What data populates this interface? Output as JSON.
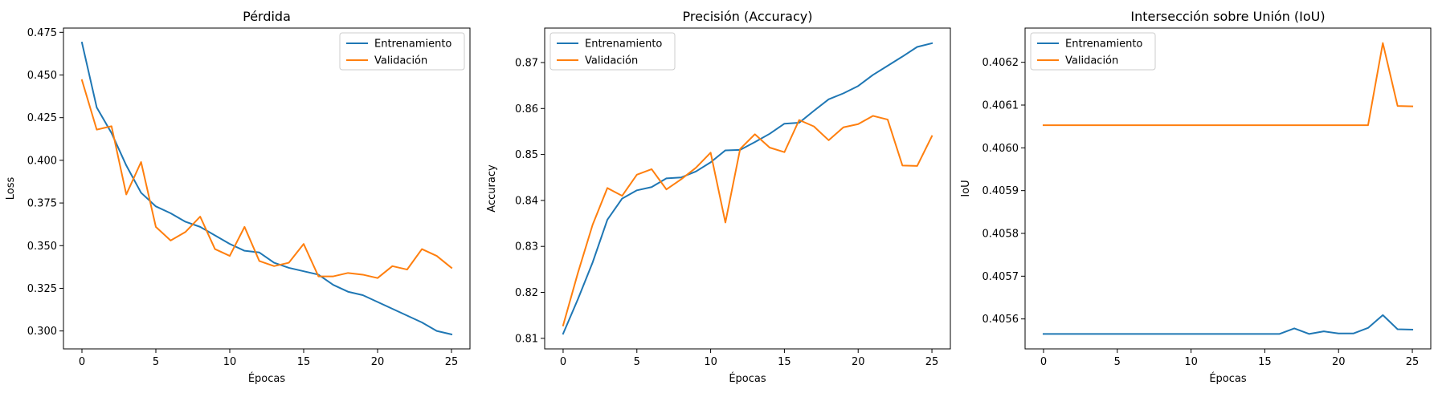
{
  "colors": {
    "train": "#1f77b4",
    "validation": "#ff7f0e"
  },
  "chart_data": [
    {
      "type": "line",
      "title": "Pérdida",
      "xlabel": "Épocas",
      "ylabel": "Loss",
      "xlim": [
        -1.25,
        26.25
      ],
      "ylim": [
        0.2895,
        0.4775
      ],
      "xticks": [
        0,
        5,
        10,
        15,
        20,
        25
      ],
      "xtick_labels": [
        "0",
        "5",
        "10",
        "15",
        "20",
        "25"
      ],
      "yticks": [
        0.3,
        0.325,
        0.35,
        0.375,
        0.4,
        0.425,
        0.45,
        0.475
      ],
      "ytick_labels": [
        "0.300",
        "0.325",
        "0.350",
        "0.375",
        "0.400",
        "0.425",
        "0.450",
        "0.475"
      ],
      "legend": "top-right",
      "grid": false,
      "x": [
        0,
        1,
        2,
        3,
        4,
        5,
        6,
        7,
        8,
        9,
        10,
        11,
        12,
        13,
        14,
        15,
        16,
        17,
        18,
        19,
        20,
        21,
        22,
        23,
        24,
        25
      ],
      "series": [
        {
          "name": "Entrenamiento",
          "color": "#1f77b4",
          "values": [
            0.469,
            0.431,
            0.416,
            0.397,
            0.381,
            0.373,
            0.369,
            0.364,
            0.361,
            0.356,
            0.351,
            0.347,
            0.346,
            0.34,
            0.337,
            0.335,
            0.333,
            0.327,
            0.323,
            0.321,
            0.317,
            0.313,
            0.309,
            0.305,
            0.3,
            0.298
          ]
        },
        {
          "name": "Validación",
          "color": "#ff7f0e",
          "values": [
            0.447,
            0.418,
            0.42,
            0.38,
            0.399,
            0.361,
            0.353,
            0.358,
            0.367,
            0.348,
            0.344,
            0.361,
            0.341,
            0.338,
            0.34,
            0.351,
            0.332,
            0.332,
            0.334,
            0.333,
            0.331,
            0.338,
            0.336,
            0.348,
            0.344,
            0.337
          ]
        }
      ]
    },
    {
      "type": "line",
      "title": "Precisión (Accuracy)",
      "xlabel": "Épocas",
      "ylabel": "Accuracy",
      "xlim": [
        -1.25,
        26.25
      ],
      "ylim": [
        0.8077,
        0.8775
      ],
      "xticks": [
        0,
        5,
        10,
        15,
        20,
        25
      ],
      "xtick_labels": [
        "0",
        "5",
        "10",
        "15",
        "20",
        "25"
      ],
      "yticks": [
        0.81,
        0.82,
        0.83,
        0.84,
        0.85,
        0.86,
        0.87
      ],
      "ytick_labels": [
        "0.81",
        "0.82",
        "0.83",
        "0.84",
        "0.85",
        "0.86",
        "0.87"
      ],
      "legend": "top-left",
      "grid": false,
      "x": [
        0,
        1,
        2,
        3,
        4,
        5,
        6,
        7,
        8,
        9,
        10,
        11,
        12,
        13,
        14,
        15,
        16,
        17,
        18,
        19,
        20,
        21,
        22,
        23,
        24,
        25
      ],
      "series": [
        {
          "name": "Entrenamiento",
          "color": "#1f77b4",
          "values": [
            0.811,
            0.8185,
            0.8265,
            0.8358,
            0.8404,
            0.8422,
            0.8429,
            0.8448,
            0.845,
            0.8463,
            0.8483,
            0.8509,
            0.851,
            0.8527,
            0.8545,
            0.8567,
            0.8569,
            0.8595,
            0.862,
            0.8633,
            0.8649,
            0.8673,
            0.8693,
            0.8713,
            0.8734,
            0.8742
          ]
        },
        {
          "name": "Validación",
          "color": "#ff7f0e",
          "values": [
            0.8128,
            0.8242,
            0.8347,
            0.8427,
            0.841,
            0.8456,
            0.8468,
            0.8424,
            0.8446,
            0.8471,
            0.8504,
            0.8352,
            0.8512,
            0.8544,
            0.8515,
            0.8505,
            0.8575,
            0.8561,
            0.8531,
            0.8559,
            0.8566,
            0.8584,
            0.8576,
            0.8476,
            0.8475,
            0.854
          ]
        }
      ]
    },
    {
      "type": "line",
      "title": "Intersección sobre Unión (IoU)",
      "xlabel": "Épocas",
      "ylabel": "IoU",
      "xlim": [
        -1.25,
        26.25
      ],
      "ylim": [
        0.40553,
        0.40628
      ],
      "xticks": [
        0,
        5,
        10,
        15,
        20,
        25
      ],
      "xtick_labels": [
        "0",
        "5",
        "10",
        "15",
        "20",
        "25"
      ],
      "yticks": [
        0.4056,
        0.4057,
        0.4058,
        0.4059,
        0.406,
        0.4061,
        0.4062
      ],
      "ytick_labels": [
        "0.4056",
        "0.4057",
        "0.4058",
        "0.4059",
        "0.4060",
        "0.4061",
        "0.4062"
      ],
      "legend": "top-left",
      "grid": false,
      "x": [
        0,
        1,
        2,
        3,
        4,
        5,
        6,
        7,
        8,
        9,
        10,
        11,
        12,
        13,
        14,
        15,
        16,
        17,
        18,
        19,
        20,
        21,
        22,
        23,
        24,
        25
      ],
      "series": [
        {
          "name": "Entrenamiento",
          "color": "#1f77b4",
          "values": [
            0.405565,
            0.405565,
            0.405565,
            0.405565,
            0.405565,
            0.405565,
            0.405565,
            0.405565,
            0.405565,
            0.405565,
            0.405565,
            0.405565,
            0.405565,
            0.405565,
            0.405565,
            0.405565,
            0.405565,
            0.405578,
            0.405565,
            0.405571,
            0.405566,
            0.405566,
            0.405579,
            0.405609,
            0.405576,
            0.405575
          ]
        },
        {
          "name": "Validación",
          "color": "#ff7f0e",
          "values": [
            0.406053,
            0.406053,
            0.406053,
            0.406053,
            0.406053,
            0.406053,
            0.406053,
            0.406053,
            0.406053,
            0.406053,
            0.406053,
            0.406053,
            0.406053,
            0.406053,
            0.406053,
            0.406053,
            0.406053,
            0.406053,
            0.406053,
            0.406053,
            0.406053,
            0.406053,
            0.406053,
            0.406245,
            0.406098,
            0.406097
          ]
        }
      ]
    }
  ]
}
